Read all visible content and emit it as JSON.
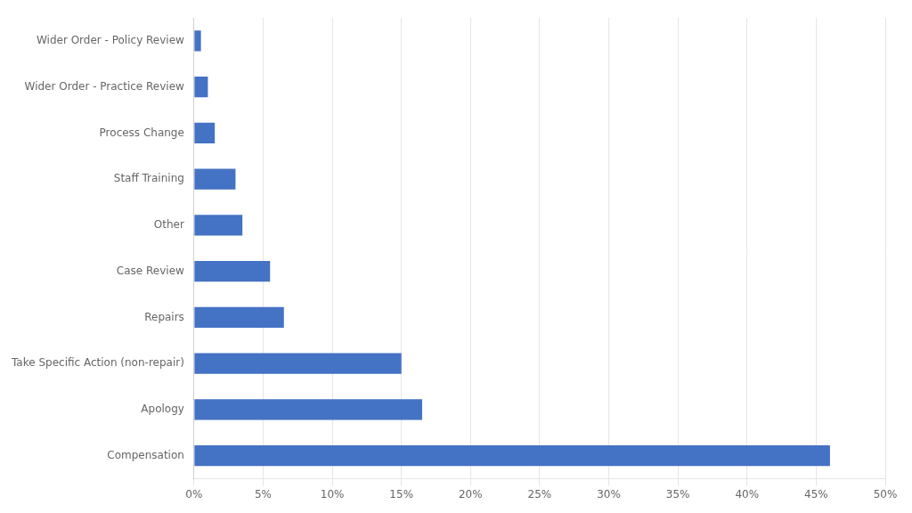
{
  "chart_data": {
    "type": "bar",
    "orientation": "horizontal",
    "categories": [
      "Compensation",
      "Apology",
      "Take Specific Action (non-repair)",
      "Repairs",
      "Case Review",
      "Other",
      "Staff Training",
      "Process Change",
      "Wider Order - Practice Review",
      "Wider Order - Policy Review"
    ],
    "values": [
      0.46,
      0.165,
      0.15,
      0.065,
      0.055,
      0.035,
      0.03,
      0.015,
      0.01,
      0.005
    ],
    "color": "#4472C4",
    "xlim": [
      0,
      0.5
    ],
    "xticks": [
      {
        "value": 0,
        "label": "0%"
      },
      {
        "value": 0.05,
        "label": "5%"
      },
      {
        "value": 0.1,
        "label": "10%"
      },
      {
        "value": 0.15,
        "label": "15%"
      },
      {
        "value": 0.2,
        "label": "20%"
      },
      {
        "value": 0.25,
        "label": "25%"
      },
      {
        "value": 0.3,
        "label": "30%"
      },
      {
        "value": 0.35,
        "label": "35%"
      },
      {
        "value": 0.4,
        "label": "40%"
      },
      {
        "value": 0.45,
        "label": "45%"
      },
      {
        "value": 0.5,
        "label": "50%"
      }
    ],
    "grid": true
  }
}
